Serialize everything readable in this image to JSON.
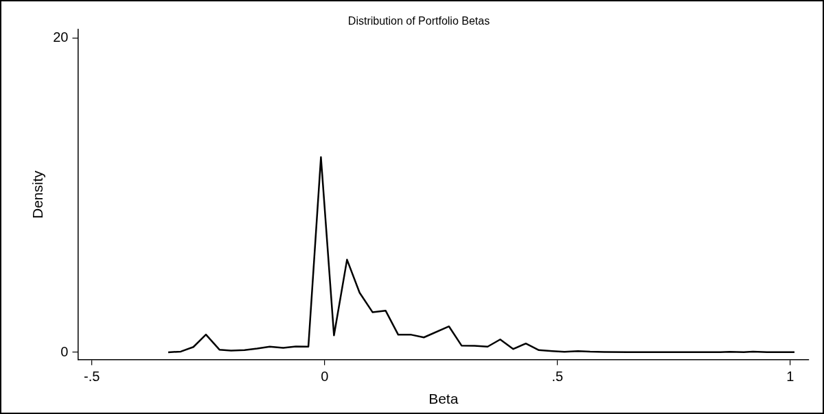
{
  "chart_data": {
    "type": "line",
    "title": "Distribution of Portfolio Betas",
    "xlabel": "Beta",
    "ylabel": "Density",
    "x": [
      -0.336,
      -0.309,
      -0.282,
      -0.255,
      -0.226,
      -0.201,
      -0.172,
      -0.145,
      -0.118,
      -0.089,
      -0.062,
      -0.035,
      -0.008,
      0.02,
      0.048,
      0.075,
      0.103,
      0.131,
      0.158,
      0.186,
      0.213,
      0.267,
      0.294,
      0.322,
      0.35,
      0.377,
      0.405,
      0.432,
      0.46,
      0.489,
      0.515,
      0.544,
      0.57,
      0.6,
      0.65,
      0.7,
      0.75,
      0.8,
      0.85,
      0.87,
      0.9,
      0.92,
      0.95,
      1.009
    ],
    "series": [
      {
        "color": "#000000",
        "values": [
          0.0,
          0.05,
          0.34,
          1.13,
          0.17,
          0.11,
          0.14,
          0.24,
          0.36,
          0.28,
          0.37,
          0.36,
          12.43,
          1.08,
          5.9,
          3.8,
          2.55,
          2.65,
          1.12,
          1.12,
          0.95,
          1.65,
          0.43,
          0.42,
          0.36,
          0.82,
          0.21,
          0.56,
          0.14,
          0.08,
          0.03,
          0.08,
          0.04,
          0.02,
          0.01,
          0.01,
          0.01,
          0.01,
          0.01,
          0.03,
          0.01,
          0.04,
          0.01,
          0.01
        ]
      }
    ],
    "xlim": [
      -0.53,
      1.04
    ],
    "xticks": [
      {
        "value": -0.5,
        "label": "-.5"
      },
      0,
      {
        "value": 0.5,
        "label": ".5"
      },
      1
    ],
    "ylim": [
      -0.47,
      20.55
    ],
    "yticks": [
      0,
      20
    ],
    "grid": false,
    "legend": false,
    "marker": "none",
    "line_style": "solid"
  }
}
